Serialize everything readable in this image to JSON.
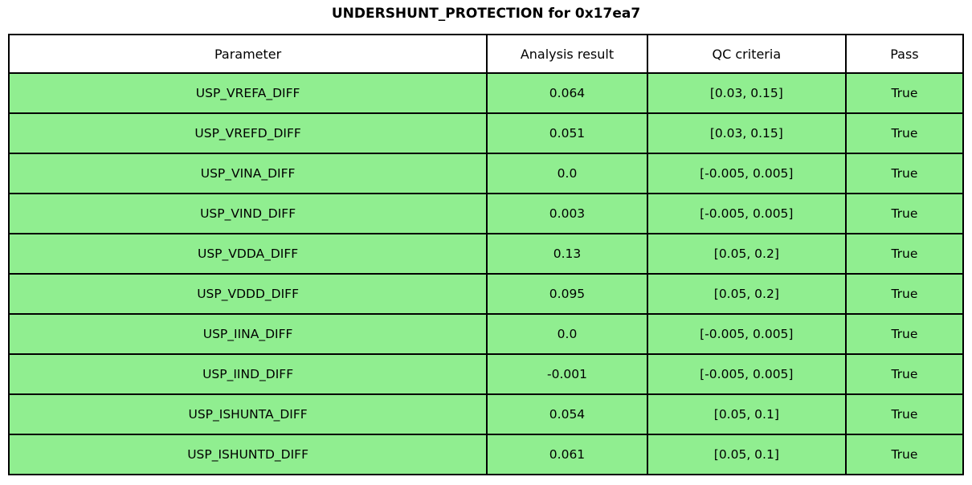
{
  "chart_data": {
    "type": "table",
    "title": "UNDERSHUNT_PROTECTION for 0x17ea7",
    "columns": [
      "Parameter",
      "Analysis result",
      "QC criteria",
      "Pass"
    ],
    "rows": [
      [
        "USP_VREFA_DIFF",
        "0.064",
        "[0.03, 0.15]",
        "True"
      ],
      [
        "USP_VREFD_DIFF",
        "0.051",
        "[0.03, 0.15]",
        "True"
      ],
      [
        "USP_VINA_DIFF",
        "0.0",
        "[-0.005, 0.005]",
        "True"
      ],
      [
        "USP_VIND_DIFF",
        "0.003",
        "[-0.005, 0.005]",
        "True"
      ],
      [
        "USP_VDDA_DIFF",
        "0.13",
        "[0.05, 0.2]",
        "True"
      ],
      [
        "USP_VDDD_DIFF",
        "0.095",
        "[0.05, 0.2]",
        "True"
      ],
      [
        "USP_IINA_DIFF",
        "0.0",
        "[-0.005, 0.005]",
        "True"
      ],
      [
        "USP_IIND_DIFF",
        "-0.001",
        "[-0.005, 0.005]",
        "True"
      ],
      [
        "USP_ISHUNTA_DIFF",
        "0.054",
        "[0.05, 0.1]",
        "True"
      ],
      [
        "USP_ISHUNTD_DIFF",
        "0.061",
        "[0.05, 0.1]",
        "True"
      ]
    ],
    "colors": {
      "row_bg": "#90ee90",
      "header_bg": "#ffffff",
      "border": "#000000"
    },
    "layout": {
      "legend": "none",
      "grid": "table-borders"
    }
  }
}
